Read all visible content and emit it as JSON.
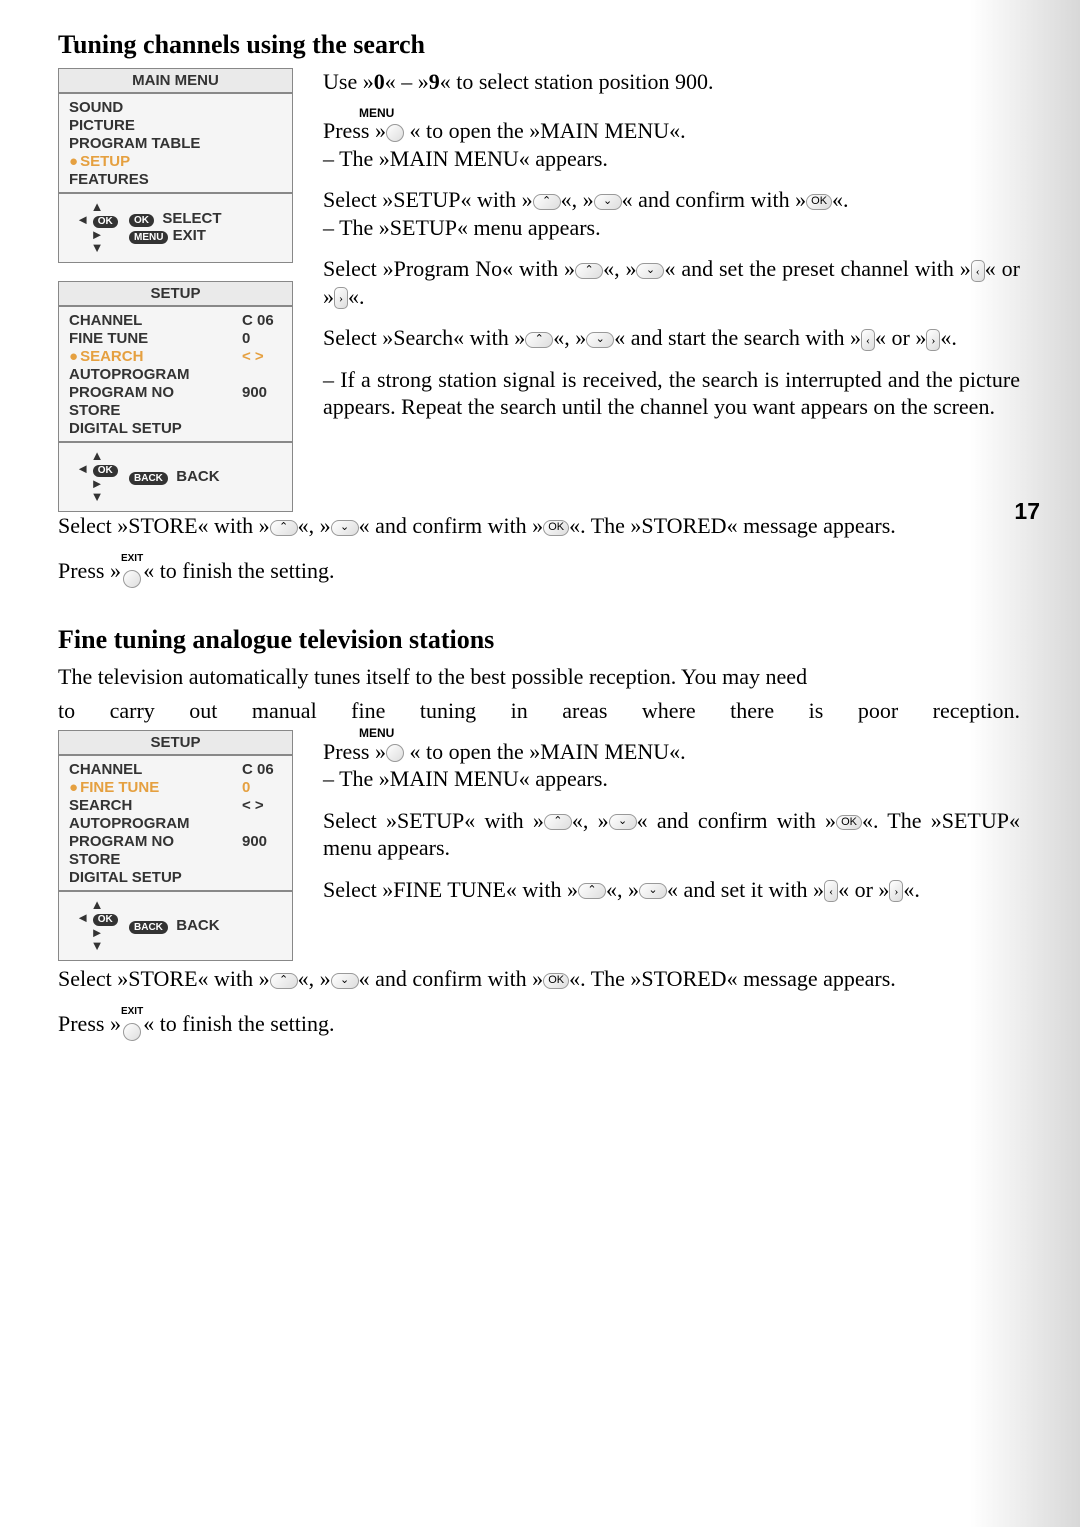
{
  "page_number": "17",
  "section1": {
    "heading": "Tuning channels using the search",
    "main_menu_box": {
      "header": "MAIN MENU",
      "items": [
        "SOUND",
        "PICTURE",
        "PROGRAM TABLE",
        "SETUP",
        "FEATURES"
      ],
      "highlighted_index": 3,
      "footer_select": "SELECT",
      "footer_exit": "EXIT",
      "footer_ok": "OK",
      "footer_menu": "MENU"
    },
    "setup_box": {
      "header": "SETUP",
      "rows": [
        {
          "label": "CHANNEL",
          "val": "C 06"
        },
        {
          "label": "FINE TUNE",
          "val": "0"
        },
        {
          "label": "SEARCH",
          "val": "< >",
          "highlighted": true
        },
        {
          "label": "AUTOPROGRAM",
          "val": ""
        },
        {
          "label": "PROGRAM NO",
          "val": "900"
        },
        {
          "label": "STORE",
          "val": ""
        },
        {
          "label": "DIGITAL SETUP",
          "val": ""
        }
      ],
      "footer_back": "BACK",
      "footer_back_pill": "BACK"
    },
    "instr1_a": "Use »",
    "instr1_b": "0",
    "instr1_c": "« – »",
    "instr1_d": "9",
    "instr1_e": "« to select station position 900.",
    "menu_label": "MENU",
    "instr2_a": "Press »",
    "instr2_b": " « to open the »MAIN MENU«.",
    "instr2_c": "– The »MAIN MENU« appears.",
    "instr3_a": "Select  »SETUP«  with  »",
    "instr3_b": "«, »",
    "instr3_c": "« and  confirm  with »",
    "instr3_d": "«.",
    "instr3_e": "– The »SETUP« menu appears.",
    "ok_label": "OK",
    "instr4_a": "Select »Program No« with »",
    "instr4_b": "«, »",
    "instr4_c": "« and  set  the  preset channel with »",
    "instr4_d": "« or »",
    "instr4_e": "«.",
    "instr5_a": "Select  »Search«  with  »",
    "instr5_b": "«, »",
    "instr5_c": "« and   start   the   search with »",
    "instr5_d": "« or »",
    "instr5_e": "«.",
    "instr6": "– If  a  strong  station  signal  is  received,  the  search  is interrupted and  the  picture  appears.  Repeat  the  search  until  the  channel you want appears on the screen.",
    "instr7_a": "Select »STORE« with »",
    "instr7_b": "«, »",
    "instr7_c": "« and confirm with »",
    "instr7_d": "«. The »STORED« message appears.",
    "instr8_a": "Press »",
    "instr8_b": "« to finish the setting.",
    "exit_label": "EXIT"
  },
  "section2": {
    "heading": "Fine tuning analogue television stations",
    "intro1": "The  television  automatically  tunes  itself  to  the  best  possible  reception.  You  may  need",
    "intro2": "to    carry    out    manual    fine    tuning    in    areas    where   there  is   poor   reception.",
    "setup_box": {
      "header": "SETUP",
      "rows": [
        {
          "label": "CHANNEL",
          "val": "C 06"
        },
        {
          "label": "FINE TUNE",
          "val": "0",
          "highlighted": true
        },
        {
          "label": "SEARCH",
          "val": "< >"
        },
        {
          "label": "AUTOPROGRAM",
          "val": ""
        },
        {
          "label": "PROGRAM NO",
          "val": "900"
        },
        {
          "label": "STORE",
          "val": ""
        },
        {
          "label": "DIGITAL SETUP",
          "val": ""
        }
      ],
      "footer_back": "BACK",
      "footer_back_pill": "BACK"
    },
    "menu_label": "MENU",
    "instr1_a": "Press »",
    "instr1_b": " « to open the »MAIN MENU«.",
    "instr1_c": "– The »MAIN MENU« appears.",
    "instr2_a": "Select  »SETUP«  with  »",
    "instr2_b": "«, »",
    "instr2_c": "« and  confirm  with »",
    "instr2_d": "«. The »SETUP« menu appears.",
    "ok_label": "OK",
    "instr3_a": "Select   »FINE TUNE«    with   »",
    "instr3_b": "«, »",
    "instr3_c": "« and    set    it with »",
    "instr3_d": "« or »",
    "instr3_e": "«.",
    "instr4_a": "Select »STORE« with »",
    "instr4_b": "«, »",
    "instr4_c": "« and confirm with »",
    "instr4_d": "«. The »STORED« message appears.",
    "instr5_a": "Press »",
    "instr5_b": "« to finish the setting.",
    "exit_label": "EXIT"
  }
}
